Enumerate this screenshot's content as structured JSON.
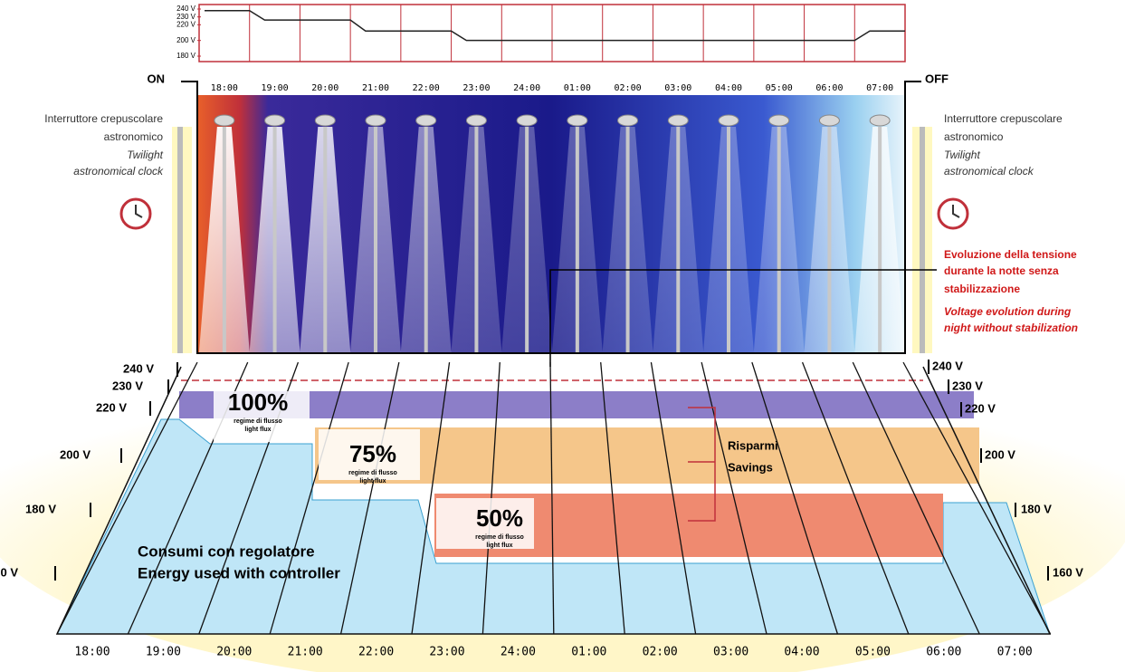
{
  "top_chart": {
    "ylim": [
      180,
      240
    ],
    "yticks": [
      {
        "value": 240,
        "label": "240 V"
      },
      {
        "value": 230,
        "label": "230 V"
      },
      {
        "value": 220,
        "label": "220 V"
      },
      {
        "value": 200,
        "label": "200 V"
      },
      {
        "value": 180,
        "label": "180 V"
      }
    ],
    "voltage": [
      238,
      226,
      226,
      212,
      212,
      200,
      200,
      200,
      200,
      200,
      200,
      200,
      200,
      212
    ]
  },
  "times": [
    "18:00",
    "19:00",
    "20:00",
    "21:00",
    "22:00",
    "23:00",
    "24:00",
    "01:00",
    "02:00",
    "03:00",
    "04:00",
    "05:00",
    "06:00",
    "07:00"
  ],
  "on_label": "ON",
  "off_label": "OFF",
  "clock_note": {
    "it_line1": "Interruttore crepuscolare",
    "it_line2": "astronomico",
    "en_line1": "Twilight",
    "en_line2": "astronomical clock"
  },
  "voltage_note": {
    "it": [
      "Evoluzione della tensione",
      "durante la notte senza",
      "stabilizzazione"
    ],
    "en": [
      "Voltage evolution during",
      "night without stabilization"
    ]
  },
  "levels": [
    "240 V",
    "230 V",
    "220 V",
    "200 V",
    "180 V",
    "160 V"
  ],
  "flux": [
    {
      "percent": "100%",
      "caption_it": "regime di flusso",
      "caption_en": "light flux"
    },
    {
      "percent": "75%",
      "caption_it": "regime di flusso",
      "caption_en": "light flux"
    },
    {
      "percent": "50%",
      "caption_it": "regime di flusso",
      "caption_en": "light flux"
    }
  ],
  "savings": [
    "Risparmi",
    "Savings"
  ],
  "consumption": [
    "Consumi con regolatore",
    "Energy used with controller"
  ]
}
